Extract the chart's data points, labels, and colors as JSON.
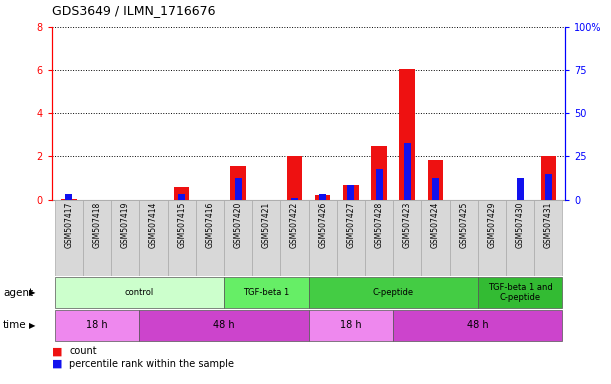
{
  "title": "GDS3649 / ILMN_1716676",
  "samples": [
    "GSM507417",
    "GSM507418",
    "GSM507419",
    "GSM507414",
    "GSM507415",
    "GSM507416",
    "GSM507420",
    "GSM507421",
    "GSM507422",
    "GSM507426",
    "GSM507427",
    "GSM507428",
    "GSM507423",
    "GSM507424",
    "GSM507425",
    "GSM507429",
    "GSM507430",
    "GSM507431"
  ],
  "count_values": [
    0.05,
    0.0,
    0.0,
    0.0,
    0.6,
    0.0,
    1.55,
    0.0,
    2.0,
    0.2,
    0.7,
    2.5,
    6.05,
    1.85,
    0.0,
    0.0,
    0.0,
    2.0
  ],
  "percentile_values": [
    3.0,
    0.0,
    0.0,
    0.0,
    3.5,
    0.0,
    12.5,
    0.0,
    1.2,
    3.0,
    8.5,
    18.0,
    33.0,
    12.5,
    0.0,
    0.0,
    12.5,
    15.0
  ],
  "ylim_left": [
    0,
    8
  ],
  "ylim_right": [
    0,
    100
  ],
  "yticks_left": [
    0,
    2,
    4,
    6,
    8
  ],
  "yticks_right": [
    0,
    25,
    50,
    75,
    100
  ],
  "ytick_labels_right": [
    "0",
    "25",
    "50",
    "75",
    "100%"
  ],
  "bar_color_count": "#ee1111",
  "bar_color_percentile": "#1111ee",
  "agent_groups": [
    {
      "label": "control",
      "start": 0,
      "end": 5,
      "color": "#ccffcc"
    },
    {
      "label": "TGF-beta 1",
      "start": 6,
      "end": 8,
      "color": "#66ee66"
    },
    {
      "label": "C-peptide",
      "start": 9,
      "end": 14,
      "color": "#44cc44"
    },
    {
      "label": "TGF-beta 1 and\nC-peptide",
      "start": 15,
      "end": 17,
      "color": "#33bb33"
    }
  ],
  "time_groups": [
    {
      "label": "18 h",
      "start": 0,
      "end": 2,
      "color": "#ee88ee"
    },
    {
      "label": "48 h",
      "start": 3,
      "end": 8,
      "color": "#cc44cc"
    },
    {
      "label": "18 h",
      "start": 9,
      "end": 11,
      "color": "#ee88ee"
    },
    {
      "label": "48 h",
      "start": 12,
      "end": 17,
      "color": "#cc44cc"
    }
  ],
  "agent_label": "agent",
  "time_label": "time",
  "legend_count": "count",
  "legend_percentile": "percentile rank within the sample",
  "bg_color": "#ffffff",
  "sample_bg_color": "#d8d8d8",
  "sample_border_color": "#aaaaaa"
}
